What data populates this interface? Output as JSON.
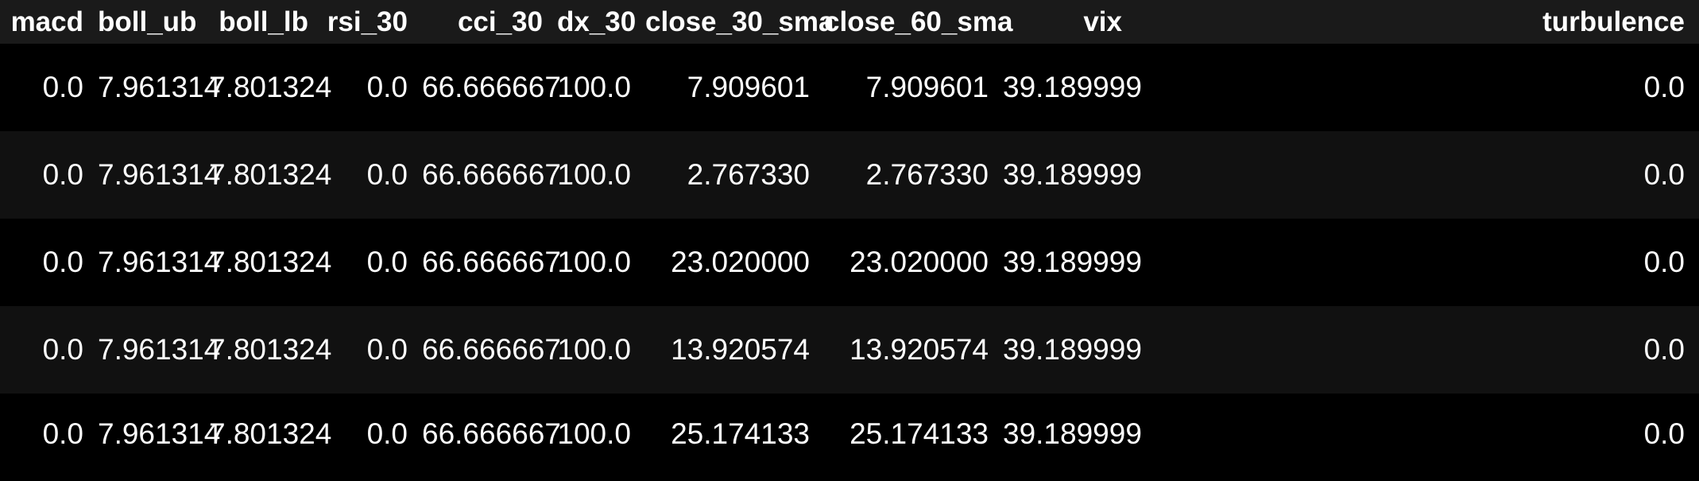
{
  "table": {
    "columns": [
      "macd",
      "boll_ub",
      "boll_lb",
      "rsi_30",
      "cci_30",
      "dx_30",
      "close_30_sma",
      "close_60_sma",
      "vix",
      "turbulence"
    ],
    "rows": [
      [
        "0.0",
        "7.961314",
        "7.801324",
        "0.0",
        "66.666667",
        "100.0",
        "7.909601",
        "7.909601",
        "39.189999",
        "0.0"
      ],
      [
        "0.0",
        "7.961314",
        "7.801324",
        "0.0",
        "66.666667",
        "100.0",
        "2.767330",
        "2.767330",
        "39.189999",
        "0.0"
      ],
      [
        "0.0",
        "7.961314",
        "7.801324",
        "0.0",
        "66.666667",
        "100.0",
        "23.020000",
        "23.020000",
        "39.189999",
        "0.0"
      ],
      [
        "0.0",
        "7.961314",
        "7.801324",
        "0.0",
        "66.666667",
        "100.0",
        "13.920574",
        "13.920574",
        "39.189999",
        "0.0"
      ],
      [
        "0.0",
        "7.961314",
        "7.801324",
        "0.0",
        "66.666667",
        "100.0",
        "25.174133",
        "25.174133",
        "39.189999",
        "0.0"
      ]
    ]
  },
  "colors": {
    "background": "#111111",
    "header_background": "#1a1a1a",
    "row_odd": "#000000",
    "row_even": "#111111",
    "text": "#ffffff"
  }
}
